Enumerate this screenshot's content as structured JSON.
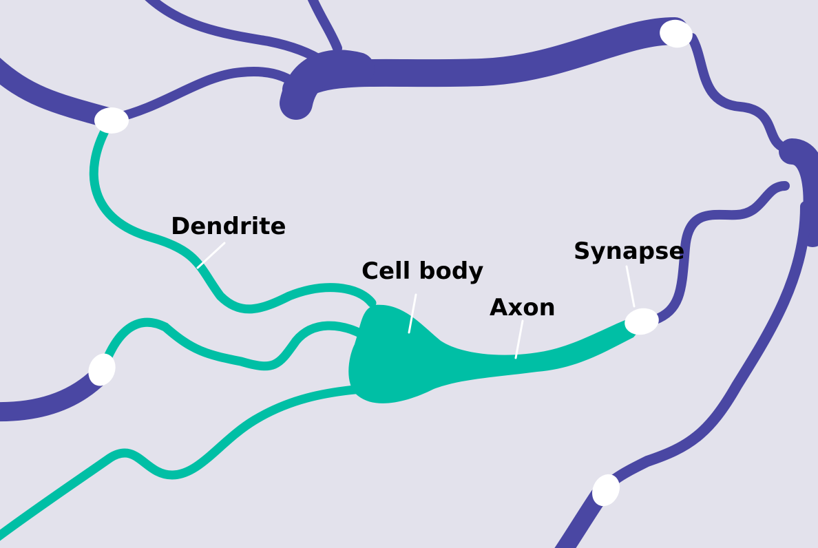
{
  "colors": {
    "background": "#e3e2ec",
    "neuron_main": "#00bfa5",
    "neuron_other": "#4a47a3",
    "synapse": "#ffffff",
    "pointer": "#ffffff",
    "label_text": "#000000"
  },
  "labels": {
    "dendrite": "Dendrite",
    "cell_body": "Cell body",
    "axon": "Axon",
    "synapse": "Synapse"
  }
}
